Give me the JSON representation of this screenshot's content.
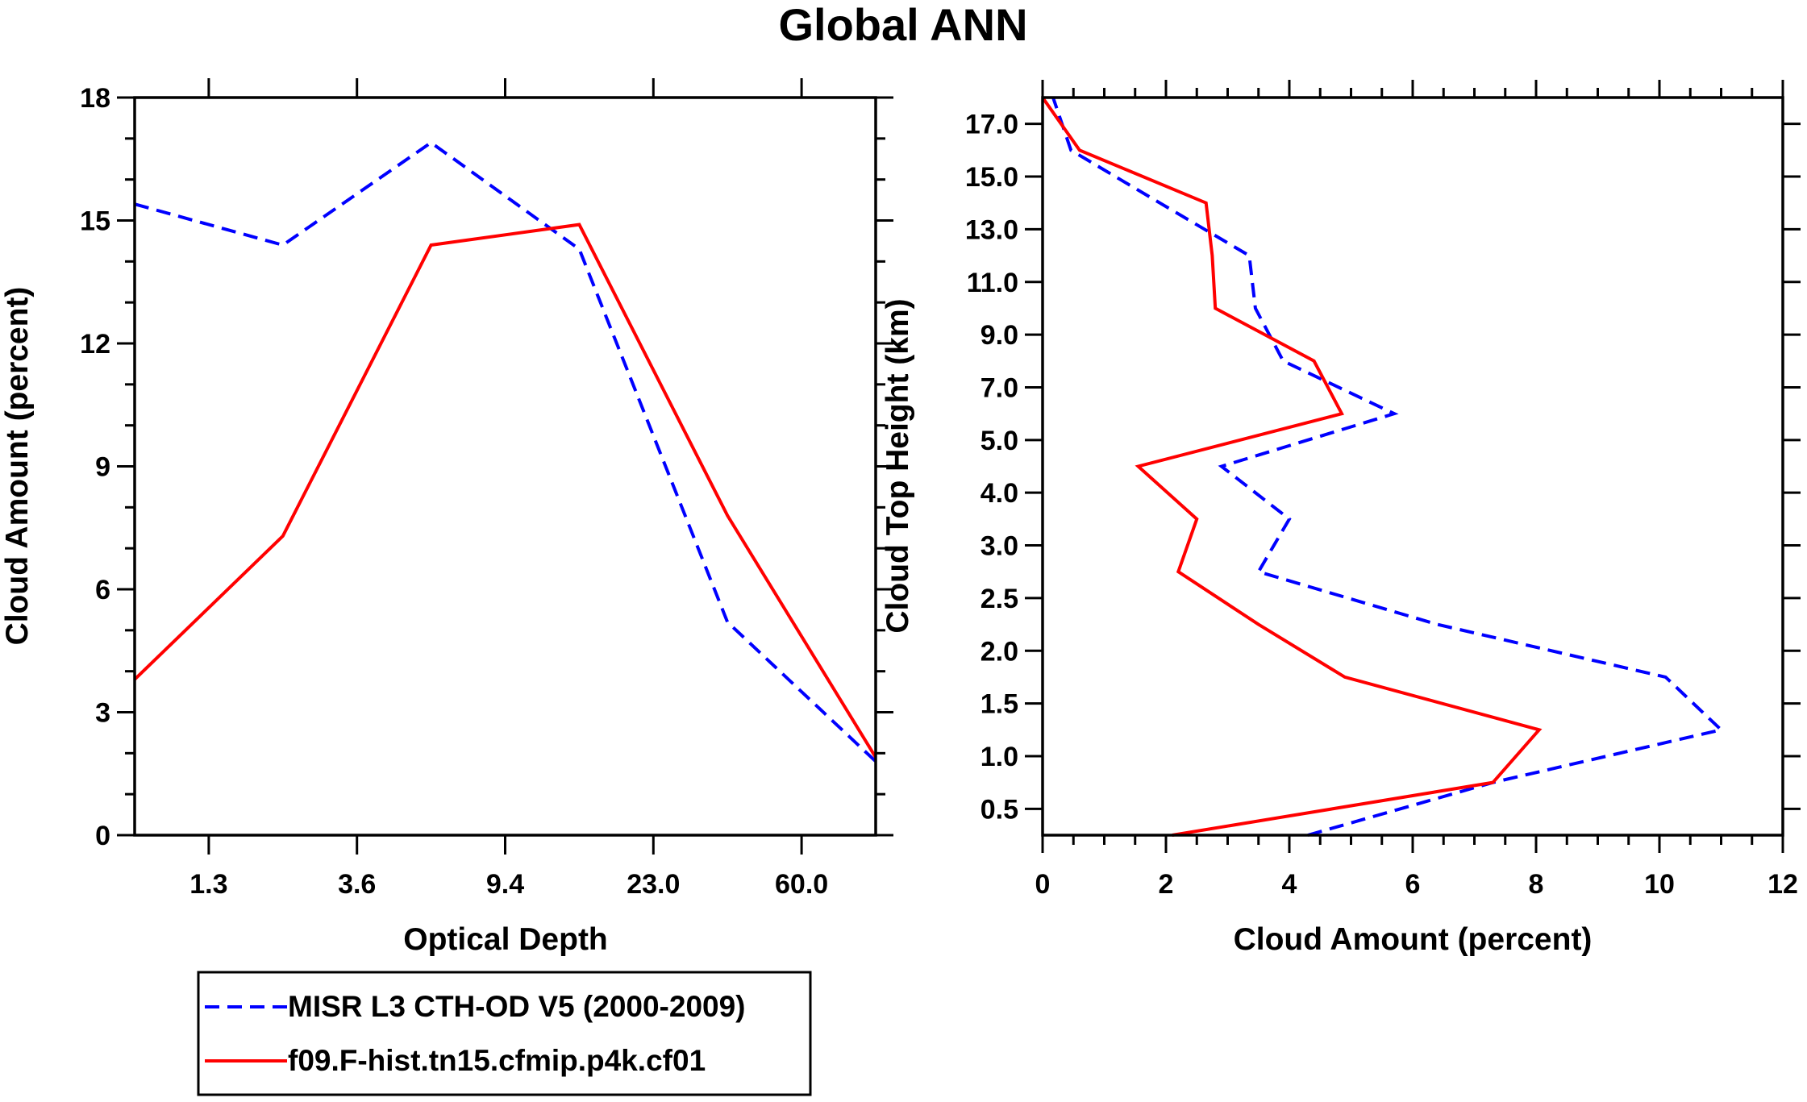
{
  "title": "Global ANN",
  "colors": {
    "obs": "#0000ff",
    "model": "#ff0000",
    "axis": "#000000"
  },
  "legend": {
    "entries": [
      {
        "label": "MISR L3 CTH-OD V5 (2000-2009)",
        "style": "dashed",
        "color": "#0000ff"
      },
      {
        "label": "f09.F-hist.tn15.cfmip.p4k.cf01",
        "style": "solid",
        "color": "#ff0000"
      }
    ]
  },
  "chart_data": [
    {
      "type": "line",
      "title": "",
      "xlabel": "Optical Depth",
      "ylabel": "Cloud Amount (percent)",
      "x_bin_boundary_labels": [
        "1.3",
        "3.6",
        "9.4",
        "23.0",
        "60.0"
      ],
      "x_bin_index": [
        0,
        1,
        2,
        3,
        4,
        5
      ],
      "ylim": [
        0,
        18
      ],
      "yticks": [
        0,
        3,
        6,
        9,
        12,
        15,
        18
      ],
      "ytick_labels": [
        "0",
        "3",
        "6",
        "9",
        "12",
        "15",
        "18"
      ],
      "grid": false,
      "series": [
        {
          "name": "MISR L3 CTH-OD V5 (2000-2009)",
          "values": [
            15.4,
            14.4,
            16.9,
            14.3,
            5.2,
            1.8
          ]
        },
        {
          "name": "f09.F-hist.tn15.cfmip.p4k.cf01",
          "values": [
            3.8,
            7.3,
            14.4,
            14.9,
            7.8,
            1.9
          ]
        }
      ]
    },
    {
      "type": "line",
      "title": "",
      "xlabel": "Cloud Amount (percent)",
      "ylabel": "Cloud Top Height (km)",
      "xlim": [
        0,
        12
      ],
      "xticks": [
        0,
        2,
        4,
        6,
        8,
        10,
        12
      ],
      "xtick_labels": [
        "0",
        "2",
        "4",
        "6",
        "8",
        "10",
        "12"
      ],
      "ytick_labels": [
        "0.5",
        "1.0",
        "1.5",
        "2.0",
        "2.5",
        "3.0",
        "4.0",
        "5.0",
        "7.0",
        "9.0",
        "11.0",
        "13.0",
        "15.0",
        "17.0"
      ],
      "height_levels_km": [
        0,
        0.75,
        1.25,
        1.75,
        2.25,
        2.75,
        3.5,
        4.5,
        6,
        8,
        10,
        12,
        14,
        16,
        18
      ],
      "grid": false,
      "series": [
        {
          "name": "MISR L3 CTH-OD V5 (2000-2009)",
          "values": [
            4.3,
            7.3,
            11.0,
            10.1,
            6.4,
            3.5,
            4.0,
            2.9,
            5.7,
            3.9,
            3.45,
            3.35,
            1.9,
            0.46,
            0.17
          ]
        },
        {
          "name": "f09.F-hist.tn15.cfmip.p4k.cf01",
          "values": [
            2.1,
            7.3,
            8.05,
            4.9,
            3.5,
            2.2,
            2.5,
            1.55,
            4.85,
            4.4,
            2.8,
            2.75,
            2.65,
            0.6,
            0.0
          ]
        }
      ]
    }
  ]
}
